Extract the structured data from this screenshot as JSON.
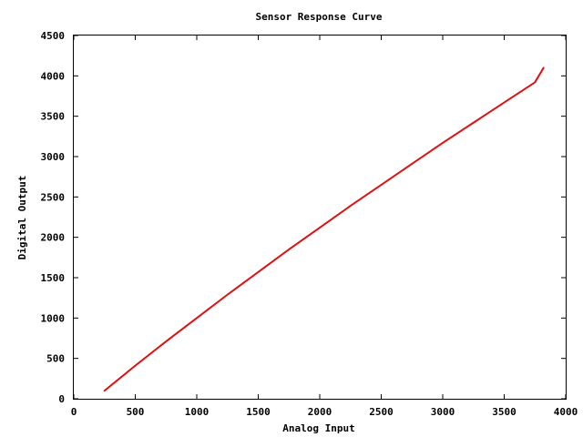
{
  "chart_data": {
    "type": "line",
    "title": "Sensor Response Curve",
    "xlabel": "Analog Input",
    "ylabel": "Digital Output",
    "xlim": [
      0,
      4000
    ],
    "ylim": [
      0,
      4500
    ],
    "x_ticks": [
      0,
      500,
      1000,
      1500,
      2000,
      2500,
      3000,
      3500,
      4000
    ],
    "y_ticks": [
      0,
      500,
      1000,
      1500,
      2000,
      2500,
      3000,
      3500,
      4000,
      4500
    ],
    "grid": false,
    "legend": "none",
    "series": [
      {
        "color": "#dd1111",
        "x": [
          250,
          500,
          750,
          1000,
          1250,
          1500,
          1750,
          2000,
          2250,
          2500,
          2750,
          3000,
          3250,
          3500,
          3750,
          3820
        ],
        "y": [
          100,
          410,
          710,
          1000,
          1290,
          1570,
          1850,
          2120,
          2390,
          2650,
          2910,
          3170,
          3420,
          3670,
          3920,
          4100
        ]
      }
    ]
  }
}
